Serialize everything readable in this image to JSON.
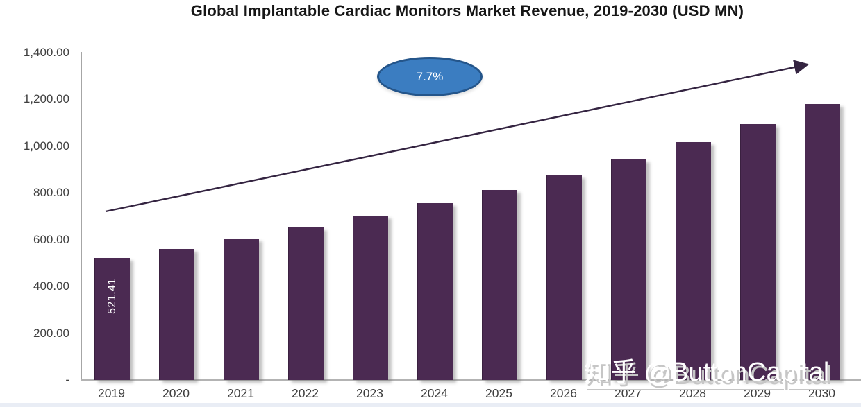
{
  "chart_data": {
    "type": "bar",
    "title": "Global Implantable Cardiac Monitors Market Revenue, 2019-2030 (USD MN)",
    "categories": [
      "2019",
      "2020",
      "2021",
      "2022",
      "2023",
      "2024",
      "2025",
      "2026",
      "2027",
      "2028",
      "2029",
      "2030"
    ],
    "values": [
      521.41,
      561.56,
      604.8,
      651.37,
      701.53,
      755.54,
      813.72,
      876.38,
      943.86,
      1016.54,
      1094.81,
      1179.11
    ],
    "labeled_points": [
      {
        "category": "2019",
        "label": "521.41"
      }
    ],
    "ylim": [
      0,
      1400
    ],
    "y_ticks": [
      "1,400.00",
      "1,200.00",
      "1,000.00",
      "800.00",
      "600.00",
      "400.00",
      "200.00",
      "-"
    ],
    "grid": false,
    "legend": "none",
    "annotations": [
      {
        "type": "ellipse-badge",
        "text": "7.7%"
      },
      {
        "type": "trend-arrow",
        "description": "upward growth arrow across bars"
      }
    ],
    "colors": {
      "bar": "#4b2a52",
      "arrow": "#342441",
      "ellipse_fill": "#3b7dc1",
      "ellipse_border": "#24558a",
      "axis": "#a6a6a6"
    }
  },
  "cagr_badge": "7.7%",
  "watermark": "知乎 @ButtonCapital"
}
